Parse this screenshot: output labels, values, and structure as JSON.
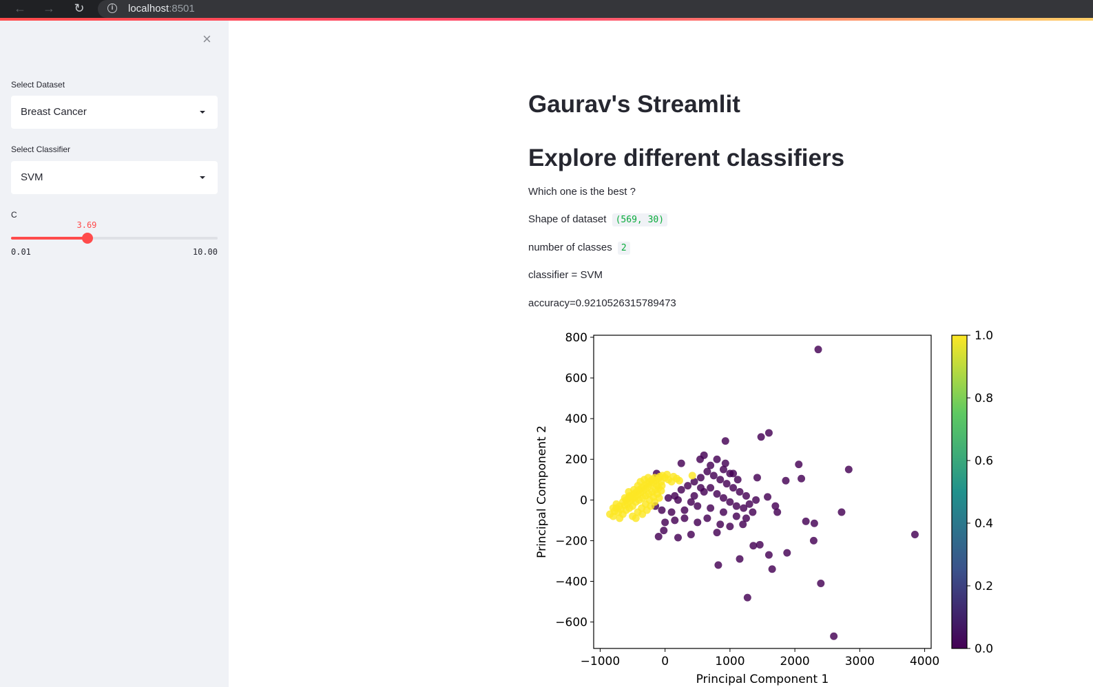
{
  "browser": {
    "host": "localhost",
    "port": ":8501"
  },
  "sidebar": {
    "close_glyph": "×",
    "dataset_label": "Select Dataset",
    "dataset_value": "Breast Cancer",
    "classifier_label": "Select Classifier",
    "classifier_value": "SVM",
    "param_label": "C",
    "slider": {
      "value_text": "3.69",
      "value": 3.69,
      "min": 0.01,
      "max": 10.0,
      "min_text": "0.01",
      "max_text": "10.00"
    }
  },
  "main": {
    "title": "Gaurav's Streamlit",
    "subtitle": "Explore different classifiers",
    "question": "Which one is the best ?",
    "shape_label": "Shape of dataset",
    "shape_value": "(569, 30)",
    "classes_label": "number of classes",
    "classes_value": "2",
    "classifier_line": "classifier = SVM",
    "accuracy_line": "accuracy=0.9210526315789473"
  },
  "colors": {
    "accent": "#ff4b4b",
    "class0": "#440154",
    "class1": "#fde725"
  },
  "chart_data": {
    "type": "scatter",
    "title": "",
    "xlabel": "Principal Component 1",
    "ylabel": "Principal Component 2",
    "xlim": [
      -1100,
      4100
    ],
    "ylim": [
      -730,
      810
    ],
    "xticks": [
      -1000,
      0,
      1000,
      2000,
      3000,
      4000
    ],
    "yticks": [
      -600,
      -400,
      -200,
      0,
      200,
      400,
      600,
      800
    ],
    "xtick_labels": [
      "−1000",
      "0",
      "1000",
      "2000",
      "3000",
      "4000"
    ],
    "ytick_labels": [
      "−600",
      "−400",
      "−200",
      "0",
      "200",
      "400",
      "600",
      "800"
    ],
    "colorbar": {
      "min": 0.0,
      "max": 1.0,
      "ticks": [
        0.0,
        0.2,
        0.4,
        0.6,
        0.8,
        1.0
      ],
      "tick_labels": [
        "0.0",
        "0.2",
        "0.4",
        "0.6",
        "0.8",
        "1.0"
      ]
    },
    "series": [
      {
        "name": "0",
        "color": "#440154",
        "points": [
          [
            2360,
            740
          ],
          [
            1600,
            330
          ],
          [
            1480,
            310
          ],
          [
            930,
            290
          ],
          [
            2830,
            150
          ],
          [
            2060,
            175
          ],
          [
            2100,
            105
          ],
          [
            1860,
            95
          ],
          [
            1420,
            110
          ],
          [
            250,
            180
          ],
          [
            600,
            220
          ],
          [
            800,
            200
          ],
          [
            930,
            180
          ],
          [
            540,
            200
          ],
          [
            1050,
            130
          ],
          [
            1120,
            100
          ],
          [
            1700,
            -30
          ],
          [
            1730,
            -60
          ],
          [
            1580,
            15
          ],
          [
            2720,
            -60
          ],
          [
            2170,
            -105
          ],
          [
            2300,
            -115
          ],
          [
            3850,
            -170
          ],
          [
            2290,
            -200
          ],
          [
            1880,
            -260
          ],
          [
            1600,
            -270
          ],
          [
            1460,
            -220
          ],
          [
            1360,
            -225
          ],
          [
            1150,
            -290
          ],
          [
            820,
            -320
          ],
          [
            1650,
            -340
          ],
          [
            2400,
            -410
          ],
          [
            1270,
            -480
          ],
          [
            2600,
            -670
          ],
          [
            -100,
            -180
          ],
          [
            200,
            -185
          ],
          [
            400,
            -170
          ],
          [
            800,
            -160
          ],
          [
            1000,
            -130
          ],
          [
            1200,
            -120
          ],
          [
            1100,
            -80
          ],
          [
            900,
            -60
          ],
          [
            700,
            -40
          ],
          [
            500,
            -30
          ],
          [
            300,
            -50
          ],
          [
            100,
            -60
          ],
          [
            -50,
            -50
          ],
          [
            -150,
            -30
          ],
          [
            0,
            -110
          ],
          [
            150,
            -100
          ],
          [
            -20,
            -150
          ],
          [
            300,
            -90
          ],
          [
            500,
            -110
          ],
          [
            650,
            -90
          ],
          [
            850,
            -120
          ],
          [
            1300,
            -20
          ],
          [
            1400,
            0
          ],
          [
            1250,
            20
          ],
          [
            1150,
            40
          ],
          [
            1050,
            60
          ],
          [
            950,
            80
          ],
          [
            850,
            100
          ],
          [
            750,
            120
          ],
          [
            650,
            140
          ],
          [
            550,
            110
          ],
          [
            450,
            90
          ],
          [
            350,
            70
          ],
          [
            250,
            50
          ],
          [
            150,
            20
          ],
          [
            50,
            10
          ],
          [
            600,
            40
          ],
          [
            700,
            60
          ],
          [
            800,
            30
          ],
          [
            900,
            10
          ],
          [
            1000,
            -10
          ],
          [
            400,
            -10
          ],
          [
            200,
            0
          ],
          [
            1100,
            -30
          ],
          [
            1000,
            130
          ],
          [
            900,
            150
          ],
          [
            700,
            170
          ],
          [
            1210,
            -40
          ],
          [
            1350,
            -60
          ],
          [
            1250,
            -90
          ],
          [
            -130,
            130
          ],
          [
            550,
            60
          ],
          [
            450,
            20
          ]
        ]
      },
      {
        "name": "1",
        "color": "#fde725",
        "points": [
          [
            -850,
            -70
          ],
          [
            -800,
            -80
          ],
          [
            -780,
            -55
          ],
          [
            -750,
            -40
          ],
          [
            -720,
            -60
          ],
          [
            -700,
            -30
          ],
          [
            -680,
            -45
          ],
          [
            -650,
            -10
          ],
          [
            -620,
            -25
          ],
          [
            -600,
            0
          ],
          [
            -580,
            -20
          ],
          [
            -560,
            10
          ],
          [
            -540,
            -5
          ],
          [
            -520,
            20
          ],
          [
            -500,
            5
          ],
          [
            -480,
            30
          ],
          [
            -460,
            15
          ],
          [
            -440,
            40
          ],
          [
            -420,
            25
          ],
          [
            -400,
            50
          ],
          [
            -380,
            35
          ],
          [
            -360,
            60
          ],
          [
            -340,
            45
          ],
          [
            -320,
            70
          ],
          [
            -300,
            55
          ],
          [
            -280,
            80
          ],
          [
            -260,
            65
          ],
          [
            -240,
            90
          ],
          [
            -220,
            75
          ],
          [
            -200,
            100
          ],
          [
            -180,
            85
          ],
          [
            -160,
            110
          ],
          [
            -140,
            95
          ],
          [
            -120,
            70
          ],
          [
            -100,
            105
          ],
          [
            -80,
            115
          ],
          [
            -60,
            90
          ],
          [
            -40,
            120
          ],
          [
            0,
            110
          ],
          [
            30,
            125
          ],
          [
            50,
            100
          ],
          [
            100,
            90
          ],
          [
            130,
            115
          ],
          [
            180,
            105
          ],
          [
            220,
            95
          ],
          [
            -650,
            -70
          ],
          [
            -600,
            -50
          ],
          [
            -550,
            -40
          ],
          [
            -500,
            -30
          ],
          [
            -450,
            -10
          ],
          [
            -400,
            0
          ],
          [
            -350,
            10
          ],
          [
            -300,
            20
          ],
          [
            -250,
            30
          ],
          [
            -200,
            40
          ],
          [
            -150,
            50
          ],
          [
            -100,
            60
          ],
          [
            -50,
            70
          ],
          [
            -700,
            -90
          ],
          [
            -500,
            -80
          ],
          [
            -420,
            -60
          ],
          [
            -360,
            -40
          ],
          [
            -300,
            -20
          ],
          [
            -240,
            0
          ],
          [
            -180,
            15
          ],
          [
            -120,
            30
          ],
          [
            -60,
            45
          ],
          [
            -550,
            20
          ],
          [
            -480,
            50
          ],
          [
            -420,
            70
          ],
          [
            -380,
            90
          ],
          [
            -320,
            100
          ],
          [
            -260,
            110
          ],
          [
            -620,
            10
          ],
          [
            -560,
            40
          ],
          [
            -450,
            -90
          ],
          [
            -350,
            -70
          ],
          [
            -280,
            -50
          ],
          [
            -220,
            -30
          ],
          [
            -160,
            -10
          ],
          [
            -90,
            10
          ],
          [
            420,
            120
          ],
          [
            -800,
            -40
          ],
          [
            -750,
            -20
          ]
        ]
      }
    ]
  }
}
